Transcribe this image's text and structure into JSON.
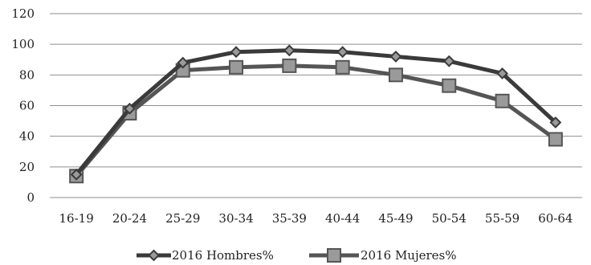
{
  "chart_data": {
    "type": "line",
    "categories": [
      "16-19",
      "20-24",
      "25-29",
      "30-34",
      "35-39",
      "40-44",
      "45-49",
      "50-54",
      "55-59",
      "60-64"
    ],
    "series": [
      {
        "name": "2016 Hombres%",
        "marker": "diamond",
        "color": "#3a3a3a",
        "values": [
          15,
          58,
          88,
          95,
          96,
          95,
          92,
          89,
          81,
          49
        ]
      },
      {
        "name": "2016 Mujeres%",
        "marker": "square",
        "color": "#555555",
        "values": [
          14,
          55,
          83,
          85,
          86,
          85,
          80,
          73,
          63,
          38
        ]
      }
    ],
    "yticks": [
      "0",
      "20",
      "40",
      "60",
      "80",
      "100",
      "120"
    ],
    "ylim": [
      0,
      120
    ],
    "grid": true,
    "legend": "bottom",
    "title": "",
    "xlabel": "",
    "ylabel": ""
  }
}
